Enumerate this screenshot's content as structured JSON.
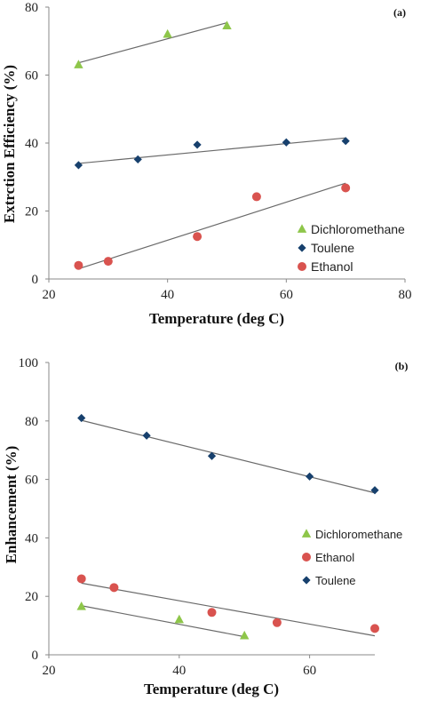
{
  "colors": {
    "Dichloromethane": "#8ec64a",
    "Toulene": "#17406d",
    "Ethanol": "#d9534f",
    "trend": "#6a6a6a",
    "axis": "#8a8a8a"
  },
  "chart_data": [
    {
      "type": "scatter",
      "panel_label": "(a)",
      "xlabel": "Temperature (deg C)",
      "ylabel": "Extrction Efficiency (%)",
      "xlim": [
        20,
        80
      ],
      "ylim": [
        0,
        80
      ],
      "x_ticks": [
        "20",
        "40",
        "60",
        "80"
      ],
      "y_ticks": [
        "0",
        "20",
        "40",
        "60",
        "80"
      ],
      "legend_position": "bottom-right",
      "legend_order": [
        "Dichloromethane",
        "Toulene",
        "Ethanol"
      ],
      "series": [
        {
          "name": "Dichloromethane",
          "marker": "triangle",
          "x": [
            25,
            40,
            50
          ],
          "y": [
            63,
            72,
            74.5
          ],
          "trend": [
            [
              25,
              63.6
            ],
            [
              50,
              75.4
            ]
          ]
        },
        {
          "name": "Toulene",
          "marker": "diamond",
          "x": [
            25,
            35,
            45,
            60,
            70
          ],
          "y": [
            33.5,
            35.2,
            39.5,
            40.2,
            40.6
          ],
          "trend": [
            [
              25,
              34.0
            ],
            [
              70,
              41.5
            ]
          ]
        },
        {
          "name": "Ethanol",
          "marker": "circle",
          "x": [
            25,
            30,
            45,
            55,
            70
          ],
          "y": [
            4,
            5.2,
            12.5,
            24.2,
            26.8
          ],
          "trend": [
            [
              25,
              3.0
            ],
            [
              70,
              28.2
            ]
          ]
        }
      ]
    },
    {
      "type": "scatter",
      "panel_label": "(b)",
      "xlabel": "Temperature (deg C)",
      "ylabel": "Enhancement (%)",
      "xlim": [
        20,
        70
      ],
      "ylim": [
        0,
        100
      ],
      "x_ticks": [
        "20",
        "40",
        "60"
      ],
      "y_ticks": [
        "0",
        "20",
        "40",
        "60",
        "80",
        "100"
      ],
      "legend_position": "bottom-right",
      "legend_order": [
        "Dichloromethane",
        "Ethanol",
        "Toulene"
      ],
      "series": [
        {
          "name": "Toulene",
          "marker": "diamond",
          "x": [
            25,
            35,
            45,
            60,
            70
          ],
          "y": [
            81,
            75,
            68,
            61,
            56.3
          ],
          "trend": [
            [
              25,
              80.2
            ],
            [
              70,
              55.4
            ]
          ]
        },
        {
          "name": "Ethanol",
          "marker": "circle",
          "x": [
            25,
            30,
            45,
            55,
            70
          ],
          "y": [
            26,
            23,
            14.5,
            11,
            9
          ],
          "trend": [
            [
              25,
              24.5
            ],
            [
              70,
              6.5
            ]
          ]
        },
        {
          "name": "Dichloromethane",
          "marker": "triangle",
          "x": [
            25,
            40,
            50
          ],
          "y": [
            16.5,
            12,
            6.5
          ],
          "trend": [
            [
              25,
              16.8
            ],
            [
              50,
              6.2
            ]
          ]
        }
      ]
    }
  ]
}
